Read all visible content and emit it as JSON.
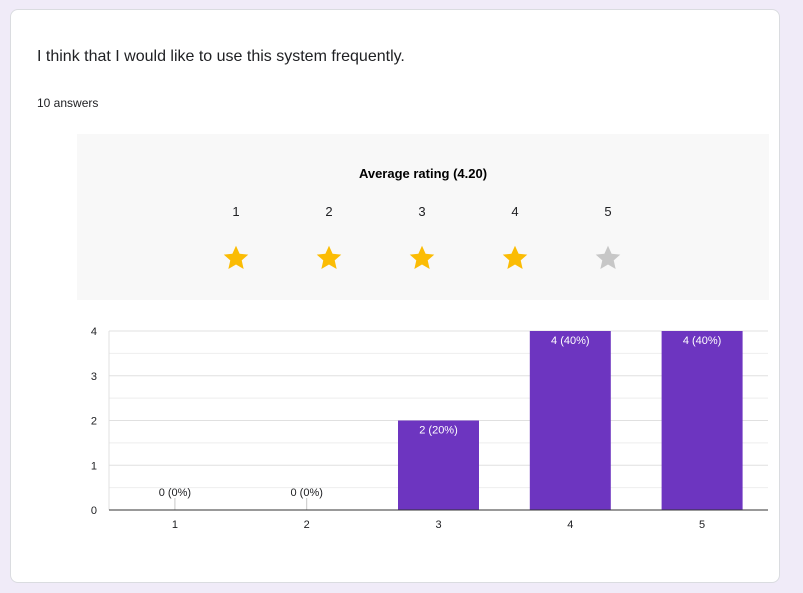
{
  "question": "I think that I would like to use this system frequently.",
  "answers_count": "10 answers",
  "rating": {
    "title": "Average rating (4.20)",
    "stars": [
      {
        "label": "1",
        "filled": true
      },
      {
        "label": "2",
        "filled": true
      },
      {
        "label": "3",
        "filled": true
      },
      {
        "label": "4",
        "filled": true
      },
      {
        "label": "5",
        "filled": false
      }
    ],
    "filled_color": "#fbbc04",
    "empty_color": "#c7c7c7"
  },
  "colors": {
    "bar": "#6d35c0",
    "page_background": "#f0ebf8",
    "card_background": "#ffffff"
  },
  "chart_data": {
    "type": "bar",
    "categories": [
      "1",
      "2",
      "3",
      "4",
      "5"
    ],
    "values": [
      0,
      0,
      2,
      4,
      4
    ],
    "data_labels": [
      "0 (0%)",
      "0 (0%)",
      "2 (20%)",
      "4 (40%)",
      "4 (40%)"
    ],
    "ylim": [
      0,
      4
    ],
    "yticks": [
      "0",
      "1",
      "2",
      "3",
      "4"
    ],
    "grid": true,
    "title": "",
    "xlabel": "",
    "ylabel": ""
  }
}
